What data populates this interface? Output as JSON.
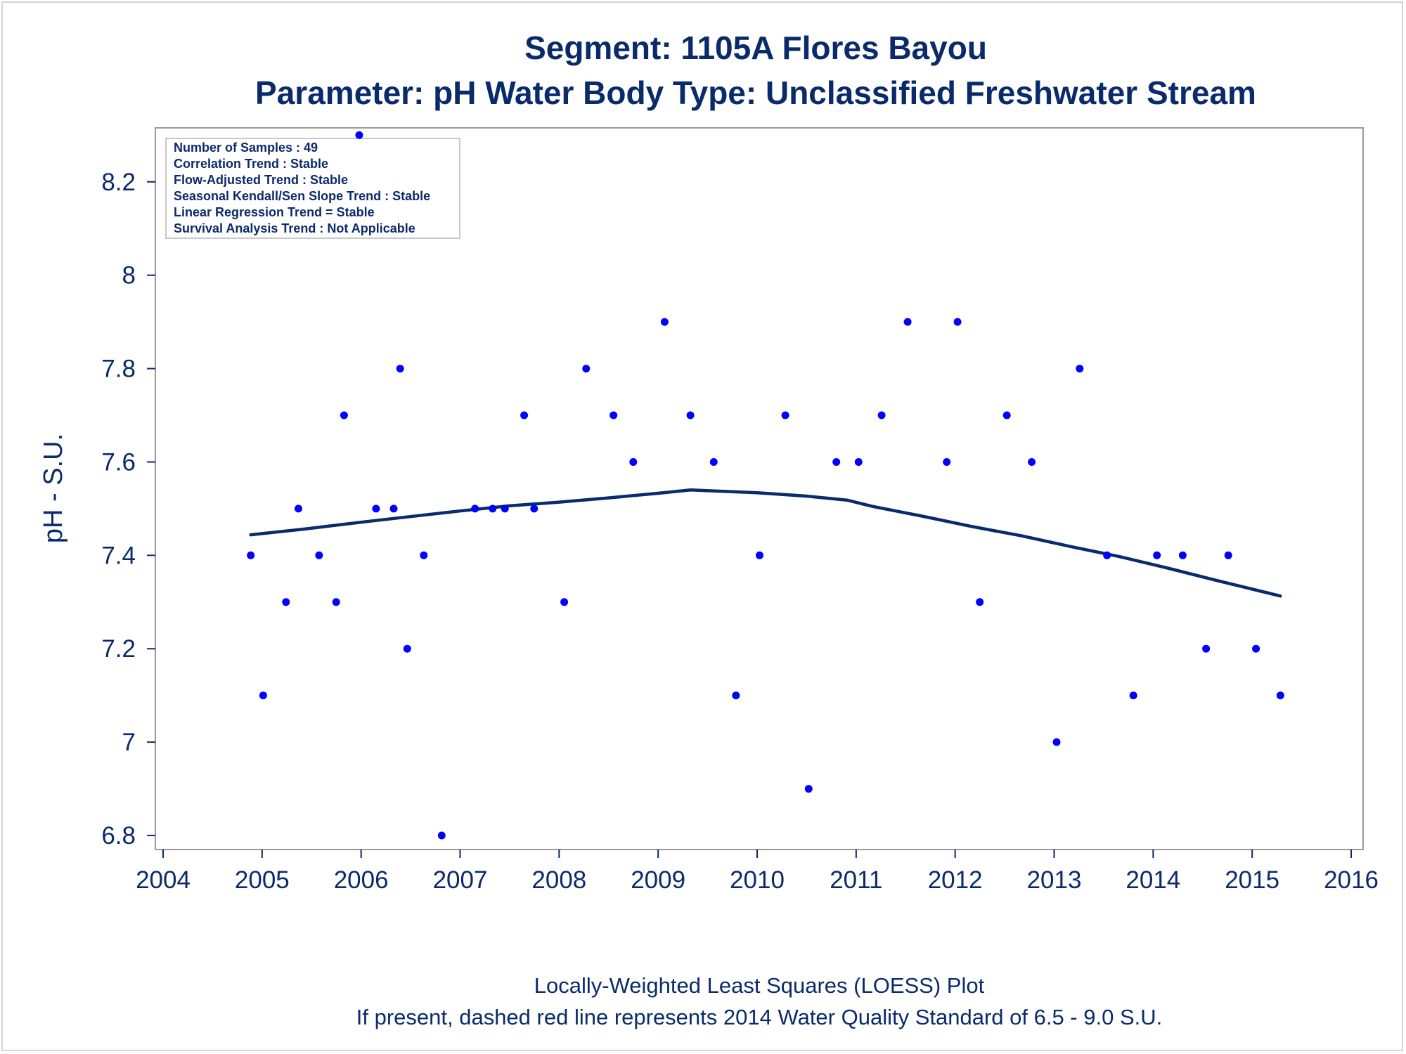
{
  "chart_data": {
    "type": "scatter",
    "title": "Segment: 1105A  Flores Bayou",
    "subtitle": "Parameter: pH   Water Body Type: Unclassified Freshwater Stream",
    "ylabel": "pH - S.U.",
    "xlabel": "",
    "xlim": [
      2004,
      2016
    ],
    "ylim": [
      6.785,
      8.305
    ],
    "x_ticks": [
      "2004",
      "2005",
      "2006",
      "2007",
      "2008",
      "2009",
      "2010",
      "2011",
      "2012",
      "2013",
      "2014",
      "2015",
      "2016"
    ],
    "y_ticks": [
      "6.8",
      "7",
      "7.2",
      "7.4",
      "7.6",
      "7.8",
      "8",
      "8.2"
    ],
    "footnotes": [
      "Locally-Weighted Least Squares (LOESS) Plot",
      "If present, dashed red line represents 2014 Water Quality Standard of 6.5 - 9.0 S.U."
    ],
    "inset_stats": [
      "Number of Samples : 49",
      "Correlation Trend : Stable",
      "Flow-Adjusted Trend : Stable",
      "Seasonal Kendall/Sen Slope Trend : Stable",
      "Linear Regression Trend = Stable",
      "Survival Analysis Trend : Not Applicable"
    ],
    "point_color": "#0000ff",
    "line_color": "#0a2b6b",
    "axis_color": "#0a2b6b",
    "grid": false,
    "series": [
      {
        "marker": "dot",
        "points": [
          [
            "2004-11-20",
            7.4
          ],
          [
            "2005-01-05",
            7.1
          ],
          [
            "2005-03-30",
            7.3
          ],
          [
            "2005-05-15",
            7.5
          ],
          [
            "2005-07-30",
            7.4
          ],
          [
            "2005-10-01",
            7.3
          ],
          [
            "2005-10-30",
            7.7
          ],
          [
            "2005-12-25",
            8.3
          ],
          [
            "2006-02-25",
            7.5
          ],
          [
            "2006-05-01",
            7.5
          ],
          [
            "2006-05-25",
            7.8
          ],
          [
            "2006-06-20",
            7.2
          ],
          [
            "2006-08-20",
            7.4
          ],
          [
            "2006-10-25",
            6.8
          ],
          [
            "2007-02-25",
            7.5
          ],
          [
            "2007-05-01",
            7.5
          ],
          [
            "2007-06-15",
            7.5
          ],
          [
            "2007-08-25",
            7.7
          ],
          [
            "2007-10-01",
            7.5
          ],
          [
            "2008-01-20",
            7.3
          ],
          [
            "2008-04-10",
            7.8
          ],
          [
            "2008-07-20",
            7.7
          ],
          [
            "2008-10-01",
            7.6
          ],
          [
            "2009-01-25",
            7.9
          ],
          [
            "2009-04-30",
            7.7
          ],
          [
            "2009-07-25",
            7.6
          ],
          [
            "2009-10-15",
            7.1
          ],
          [
            "2010-01-10",
            7.4
          ],
          [
            "2010-04-15",
            7.7
          ],
          [
            "2010-07-10",
            6.9
          ],
          [
            "2010-10-20",
            7.6
          ],
          [
            "2011-01-10",
            7.6
          ],
          [
            "2011-04-05",
            7.7
          ],
          [
            "2011-07-10",
            7.9
          ],
          [
            "2011-12-01",
            7.6
          ],
          [
            "2012-01-10",
            7.9
          ],
          [
            "2012-04-01",
            7.3
          ],
          [
            "2012-07-10",
            7.7
          ],
          [
            "2012-10-10",
            7.6
          ],
          [
            "2013-01-10",
            7.0
          ],
          [
            "2013-04-05",
            7.8
          ],
          [
            "2013-07-15",
            7.4
          ],
          [
            "2013-10-20",
            7.1
          ],
          [
            "2014-01-15",
            7.4
          ],
          [
            "2014-04-20",
            7.4
          ],
          [
            "2014-07-15",
            7.2
          ],
          [
            "2014-10-05",
            7.4
          ],
          [
            "2015-01-15",
            7.2
          ],
          [
            "2015-04-15",
            7.1
          ]
        ]
      },
      {
        "marker": "line",
        "points": [
          [
            "2004-11-20",
            7.444
          ],
          [
            "2005-06-01",
            7.456
          ],
          [
            "2006-01-01",
            7.471
          ],
          [
            "2006-07-01",
            7.483
          ],
          [
            "2007-01-01",
            7.495
          ],
          [
            "2007-07-01",
            7.506
          ],
          [
            "2008-01-01",
            7.514
          ],
          [
            "2008-07-01",
            7.523
          ],
          [
            "2009-01-01",
            7.533
          ],
          [
            "2009-05-01",
            7.54
          ],
          [
            "2009-09-01",
            7.537
          ],
          [
            "2010-01-01",
            7.534
          ],
          [
            "2010-07-01",
            7.527
          ],
          [
            "2010-12-01",
            7.518
          ],
          [
            "2011-03-01",
            7.505
          ],
          [
            "2011-09-01",
            7.484
          ],
          [
            "2012-03-01",
            7.462
          ],
          [
            "2012-09-01",
            7.442
          ],
          [
            "2013-03-01",
            7.419
          ],
          [
            "2013-09-01",
            7.397
          ],
          [
            "2014-03-01",
            7.372
          ],
          [
            "2014-09-01",
            7.345
          ],
          [
            "2015-04-15",
            7.313
          ]
        ]
      }
    ]
  }
}
